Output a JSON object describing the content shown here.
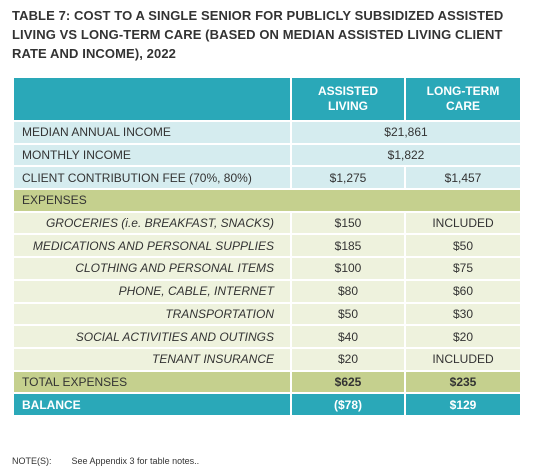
{
  "title": "TABLE 7: COST TO A SINGLE SENIOR FOR PUBLICLY SUBSIDIZED ASSISTED LIVING VS LONG-TERM CARE (BASED ON MEDIAN ASSISTED LIVING CLIENT RATE AND INCOME), 2022",
  "table": {
    "columns": [
      "ASSISTED LIVING",
      "LONG-TERM CARE"
    ],
    "income_rows": [
      {
        "label": "MEDIAN ANNUAL INCOME",
        "values": [
          "$21,861"
        ]
      },
      {
        "label": "MONTHLY INCOME",
        "values": [
          "$1,822"
        ]
      },
      {
        "label": "CLIENT CONTRIBUTION FEE (70%, 80%)",
        "values": [
          "$1,275",
          "$1,457"
        ]
      }
    ],
    "expenses": {
      "label": "EXPENSES",
      "items": [
        {
          "label": "GROCERIES (i.e. BREAKFAST, SNACKS)",
          "values": [
            "$150",
            "INCLUDED"
          ]
        },
        {
          "label": "MEDICATIONS AND PERSONAL SUPPLIES",
          "values": [
            "$185",
            "$50"
          ]
        },
        {
          "label": "CLOTHING AND PERSONAL ITEMS",
          "values": [
            "$100",
            "$75"
          ]
        },
        {
          "label": "PHONE, CABLE, INTERNET",
          "values": [
            "$80",
            "$60"
          ]
        },
        {
          "label": "TRANSPORTATION",
          "values": [
            "$50",
            "$30"
          ]
        },
        {
          "label": "SOCIAL ACTIVITIES AND OUTINGS",
          "values": [
            "$40",
            "$20"
          ]
        },
        {
          "label": "TENANT INSURANCE",
          "values": [
            "$20",
            "INCLUDED"
          ]
        }
      ]
    },
    "total": {
      "label": "TOTAL EXPENSES",
      "values": [
        "$625",
        "$235"
      ]
    },
    "balance": {
      "label": "BALANCE",
      "values": [
        "($78)",
        "$129"
      ]
    }
  },
  "note": {
    "label": "NOTE(S):",
    "text": "See Appendix 3 for table notes.."
  }
}
